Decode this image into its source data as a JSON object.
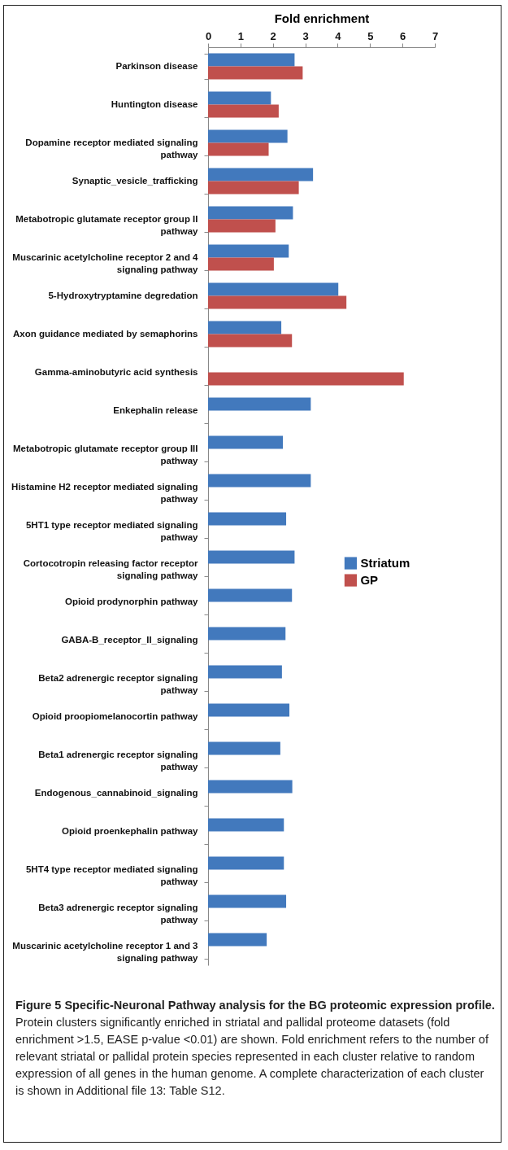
{
  "chart_data": {
    "type": "bar",
    "orientation": "horizontal",
    "xlabel": "Fold enrichment",
    "categories": [
      "Parkinson disease",
      "Huntington disease",
      "Dopamine receptor mediated signaling pathway",
      "Synaptic_vesicle_trafficking",
      "Metabotropic glutamate receptor group II pathway",
      "Muscarinic acetylcholine receptor 2 and 4 signaling pathway",
      "5-Hydroxytryptamine degredation",
      "Axon guidance mediated by semaphorins",
      "Gamma-aminobutyric acid synthesis",
      "Enkephalin release",
      "Metabotropic glutamate receptor group III pathway",
      "Histamine H2 receptor mediated signaling pathway",
      "5HT1 type receptor mediated signaling pathway",
      "Cortocotropin releasing factor receptor signaling pathway",
      "Opioid prodynorphin pathway",
      "GABA-B_receptor_II_signaling",
      "Beta2 adrenergic receptor signaling pathway",
      "Opioid proopiomelanocortin pathway",
      "Beta1 adrenergic receptor signaling pathway",
      "Endogenous_cannabinoid_signaling",
      "Opioid proenkephalin pathway",
      "5HT4 type receptor mediated signaling pathway",
      "Beta3 adrenergic receptor signaling pathway",
      "Muscarinic acetylcholine receptor 1 and 3 signaling pathway"
    ],
    "series": [
      {
        "name": "Striatum",
        "color": "#4279bd",
        "values": [
          2.67,
          1.94,
          2.45,
          3.24,
          2.62,
          2.49,
          4.02,
          2.26,
          null,
          3.17,
          2.31,
          3.17,
          2.41,
          2.67,
          2.59,
          2.39,
          2.28,
          2.51,
          2.23,
          2.6,
          2.34,
          2.34,
          2.41,
          1.81
        ]
      },
      {
        "name": "GP",
        "color": "#c0504d",
        "values": [
          2.92,
          2.18,
          1.87,
          2.8,
          2.08,
          2.03,
          4.27,
          2.59,
          6.04,
          null,
          null,
          null,
          null,
          null,
          null,
          null,
          null,
          null,
          null,
          null,
          null,
          null,
          null,
          null
        ]
      }
    ],
    "xlim": [
      0,
      7
    ],
    "xticks": [
      0,
      1,
      2,
      3,
      4,
      5,
      6,
      7
    ],
    "legend": "right",
    "annotations": [
      "Figure 5 Specific-Neuronal Pathway analysis for the BG proteomic expression profile.",
      "Protein clusters significantly enriched in striatal and pallidal proteome datasets (fold enrichment >1.5, EASE p-value <0.01) are shown. Fold enrichment refers to the number of relevant striatal or pallidal protein species represented in each cluster relative to random expression of all genes in the human genome. A complete characterization of each cluster is shown in Additional file 13: Table S12."
    ]
  }
}
